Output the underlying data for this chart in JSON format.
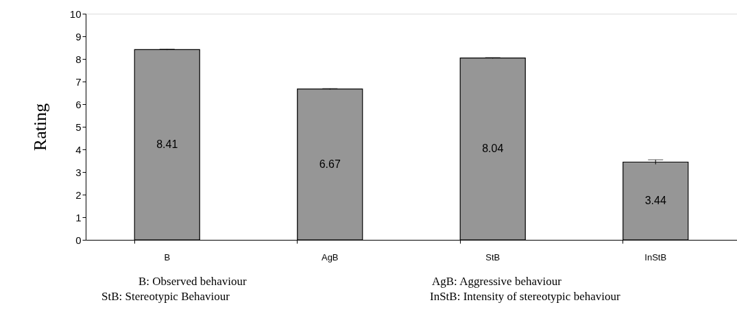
{
  "chart_data": {
    "type": "bar",
    "ylabel": "Rating",
    "categories": [
      "B",
      "AgB",
      "StB",
      "InStB"
    ],
    "values": [
      8.41,
      6.67,
      8.04,
      3.44
    ],
    "errors": [
      0.02,
      0.02,
      0.02,
      0.1
    ],
    "color": "#969696",
    "data_labels": true,
    "ylim": [
      0,
      10
    ],
    "yticks": [
      0,
      1,
      2,
      3,
      4,
      5,
      6,
      7,
      8,
      9,
      10
    ],
    "grid": false,
    "annotations": [
      "B: Observed behaviour",
      "AgB: Aggressive behaviour",
      "StB: Stereotypic Behaviour",
      "InStB: Intensity of stereotypic behaviour"
    ]
  }
}
